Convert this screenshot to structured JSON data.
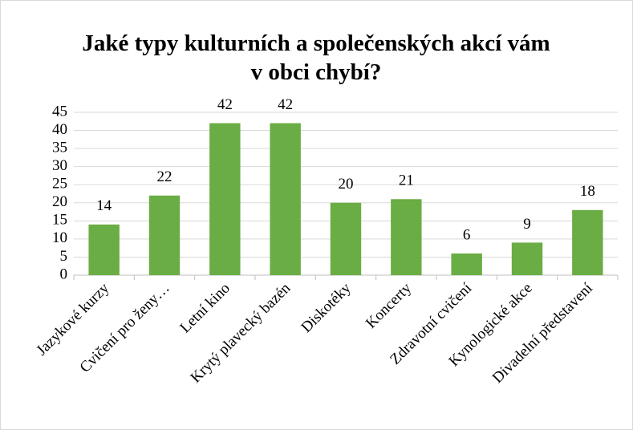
{
  "chart_data": {
    "type": "bar",
    "title": "Jaké typy kulturních a společenských akcí vám v obci chybí?",
    "categories": [
      "Jazykové kurzy",
      "Cvičení pro ženy…",
      "Letní kino",
      "Krytý plavecký bazén",
      "Diskotéky",
      "Koncerty",
      "Zdravotní cvičení",
      "Kynologické akce",
      "Divadelní představení"
    ],
    "values": [
      14,
      22,
      42,
      42,
      20,
      21,
      6,
      9,
      18
    ],
    "color": "#6aad44",
    "ylim": [
      0,
      45
    ],
    "yticks": [
      0,
      5,
      10,
      15,
      20,
      25,
      30,
      35,
      40,
      45
    ],
    "grid": true
  }
}
